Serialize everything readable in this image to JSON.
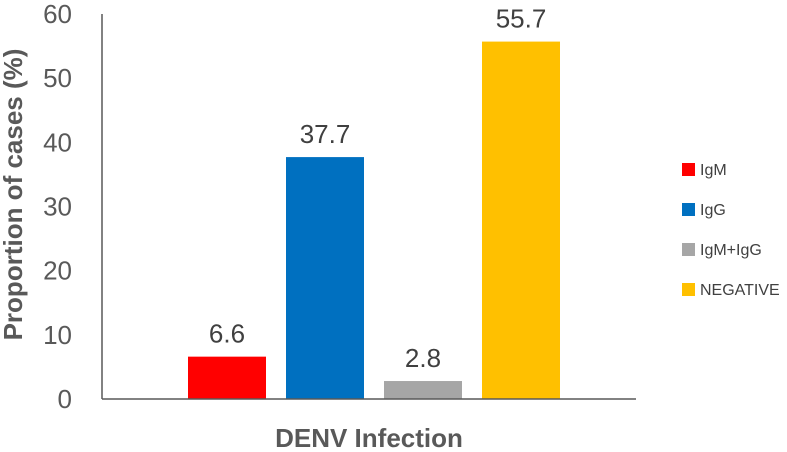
{
  "chart_data": {
    "type": "bar",
    "xlabel": "DENV Infection",
    "ylabel": "Proportion of cases (%)",
    "ylim": [
      0,
      60
    ],
    "yticks": [
      "0",
      "10",
      "20",
      "30",
      "40",
      "50",
      "60"
    ],
    "grid": false,
    "legend_position": "right",
    "series": [
      {
        "name": "IgM",
        "value": 6.6,
        "label": "6.6",
        "color": "#ff0000"
      },
      {
        "name": "IgG",
        "value": 37.7,
        "label": "37.7",
        "color": "#0070c0"
      },
      {
        "name": "IgM+IgG",
        "value": 2.8,
        "label": "2.8",
        "color": "#a6a6a6"
      },
      {
        "name": "NEGATIVE",
        "value": 55.7,
        "label": "55.7",
        "color": "#ffc000"
      }
    ]
  }
}
